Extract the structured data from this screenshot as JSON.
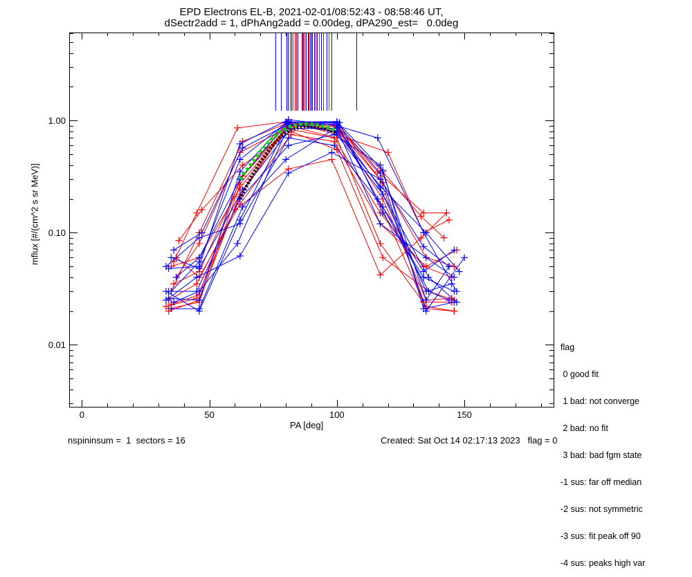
{
  "title": {
    "line1": "EPD Electrons EL-B, 2021-02-01/08:52:43 - 08:58:46 UT,",
    "line2": "dSectr2add = 1, dPhAng2add = 0.00deg, dPA290_est=   0.0deg"
  },
  "footer": {
    "left": "nspininsum =  1  sectors = 16",
    "right": "Created: Sat Oct 14 02:17:13 2023   flag = 0"
  },
  "legend": {
    "title": "flag",
    "items": [
      " 0 good fit",
      " 1 bad: not converge",
      " 2 bad: no fit",
      " 3 bad: bad fgm state",
      "-1 sus: far off median",
      "-2 sus: not symmetric",
      "-3 sus: fit peak off 90",
      "-4 sus: peaks high var"
    ]
  },
  "chart_data": {
    "type": "line",
    "xlabel": "PA [deg]",
    "ylabel": "mflux [#/(cm^2 s sr MeV)]",
    "xlim": [
      -5,
      185
    ],
    "ylim": [
      0.0028,
      6.1
    ],
    "yscale": "log",
    "xticks": [
      0,
      50,
      100,
      150
    ],
    "xtick_labels": [
      "0",
      "50",
      "100",
      "150"
    ],
    "yticks": [
      0.01,
      0.1,
      1.0
    ],
    "ytick_labels": [
      "0.01",
      "0.10",
      "1.00"
    ],
    "colors": {
      "red": "#ff0000",
      "blue": "#0000ff",
      "fit": "#00dd00",
      "median": "#000000"
    },
    "peak_markers": [
      {
        "pa": 75.8,
        "color": "blue"
      },
      {
        "pa": 78.0,
        "color": "blue"
      },
      {
        "pa": 80.2,
        "color": "blue"
      },
      {
        "pa": 80.7,
        "color": "blue"
      },
      {
        "pa": 81.5,
        "color": "red"
      },
      {
        "pa": 82.1,
        "color": "blue"
      },
      {
        "pa": 82.6,
        "color": "red"
      },
      {
        "pa": 83.4,
        "color": "red"
      },
      {
        "pa": 83.9,
        "color": "red"
      },
      {
        "pa": 84.5,
        "color": "blue"
      },
      {
        "pa": 86.1,
        "color": "red"
      },
      {
        "pa": 86.4,
        "color": "red"
      },
      {
        "pa": 86.7,
        "color": "blue"
      },
      {
        "pa": 87.2,
        "color": "red"
      },
      {
        "pa": 87.8,
        "color": "blue"
      },
      {
        "pa": 88.6,
        "color": "blue"
      },
      {
        "pa": 88.9,
        "color": "red"
      },
      {
        "pa": 89.4,
        "color": "blue"
      },
      {
        "pa": 89.9,
        "color": "blue"
      },
      {
        "pa": 90.2,
        "color": "red"
      },
      {
        "pa": 91.0,
        "color": "blue"
      },
      {
        "pa": 91.6,
        "color": "red"
      },
      {
        "pa": 92.1,
        "color": "blue"
      },
      {
        "pa": 92.9,
        "color": "red"
      },
      {
        "pa": 93.8,
        "color": "blue"
      },
      {
        "pa": 94.6,
        "color": "red"
      },
      {
        "pa": 96.0,
        "color": "blue"
      },
      {
        "pa": 96.8,
        "color": "red"
      },
      {
        "pa": 97.8,
        "color": "blue"
      },
      {
        "pa": 107.6,
        "color": "blue"
      }
    ],
    "series": [
      {
        "color": "red",
        "points": [
          [
            34,
            0.02
          ],
          [
            46,
            0.025
          ],
          [
            62,
            0.22
          ],
          [
            81,
            0.95
          ],
          [
            100,
            0.92
          ],
          [
            117,
            0.3
          ],
          [
            135,
            0.021
          ],
          [
            146,
            0.02
          ]
        ]
      },
      {
        "color": "red",
        "points": [
          [
            35,
            0.023
          ],
          [
            46,
            0.028
          ],
          [
            62,
            0.3
          ],
          [
            81,
            0.9
          ],
          [
            100,
            0.85
          ],
          [
            118,
            0.2
          ],
          [
            135,
            0.025
          ],
          [
            145,
            0.026
          ]
        ]
      },
      {
        "color": "red",
        "points": [
          [
            36,
            0.055
          ],
          [
            45,
            0.15
          ],
          [
            61,
            0.86
          ],
          [
            81,
            0.98
          ],
          [
            100,
            0.75
          ],
          [
            120,
            0.52
          ],
          [
            134,
            0.1
          ],
          [
            144,
            0.13
          ]
        ]
      },
      {
        "color": "red",
        "points": [
          [
            37,
            0.04
          ],
          [
            46,
            0.08
          ],
          [
            62,
            0.52
          ],
          [
            80,
            0.85
          ],
          [
            99,
            0.7
          ],
          [
            117,
            0.15
          ],
          [
            134,
            0.05
          ],
          [
            145,
            0.04
          ]
        ]
      },
      {
        "color": "red",
        "points": [
          [
            38,
            0.085
          ],
          [
            47,
            0.16
          ],
          [
            63,
            0.4
          ],
          [
            82,
            0.8
          ],
          [
            100,
            0.55
          ],
          [
            118,
            0.06
          ],
          [
            136,
            0.03
          ],
          [
            146,
            0.025
          ]
        ]
      },
      {
        "color": "red",
        "points": [
          [
            34,
            0.025
          ],
          [
            45,
            0.035
          ],
          [
            60,
            0.16
          ],
          [
            81,
            0.37
          ],
          [
            98,
            0.45
          ],
          [
            117,
            0.042
          ],
          [
            133,
            0.09
          ],
          [
            143,
            0.15
          ]
        ]
      },
      {
        "color": "red",
        "points": [
          [
            35,
            0.05
          ],
          [
            46,
            0.06
          ],
          [
            62,
            0.25
          ],
          [
            81,
            0.88
          ],
          [
            100,
            0.9
          ],
          [
            116,
            0.35
          ],
          [
            134,
            0.15
          ],
          [
            143,
            0.15
          ]
        ]
      },
      {
        "color": "red",
        "points": [
          [
            36,
            0.035
          ],
          [
            46,
            0.045
          ],
          [
            63,
            0.32
          ],
          [
            80,
            0.95
          ],
          [
            101,
            0.8
          ],
          [
            118,
            0.28
          ],
          [
            135,
            0.06
          ],
          [
            146,
            0.05
          ]
        ]
      },
      {
        "color": "red",
        "points": [
          [
            33,
            0.022
          ],
          [
            45,
            0.026
          ],
          [
            62,
            0.21
          ],
          [
            81,
            0.92
          ],
          [
            100,
            0.96
          ],
          [
            117,
            0.18
          ],
          [
            134,
            0.024
          ],
          [
            145,
            0.024
          ]
        ]
      },
      {
        "color": "red",
        "points": [
          [
            37,
            0.06
          ],
          [
            46,
            0.04
          ],
          [
            62,
            0.18
          ],
          [
            82,
            0.75
          ],
          [
            99,
            0.65
          ],
          [
            117,
            0.12
          ],
          [
            135,
            0.05
          ],
          [
            147,
            0.07
          ]
        ]
      },
      {
        "color": "red",
        "points": [
          [
            35,
            0.03
          ],
          [
            46,
            0.1
          ],
          [
            63,
            0.65
          ],
          [
            81,
            0.96
          ],
          [
            100,
            0.88
          ],
          [
            118,
            0.35
          ],
          [
            133,
            0.14
          ],
          [
            142,
            0.09
          ]
        ]
      },
      {
        "color": "red",
        "points": [
          [
            34,
            0.021
          ],
          [
            46,
            0.024
          ],
          [
            62,
            0.27
          ],
          [
            81,
            0.9
          ],
          [
            100,
            0.7
          ],
          [
            117,
            0.08
          ],
          [
            135,
            0.022
          ],
          [
            146,
            0.02
          ]
        ]
      },
      {
        "color": "blue",
        "points": [
          [
            33,
            0.03
          ],
          [
            46,
            0.02
          ],
          [
            62,
            0.13
          ],
          [
            81,
            0.95
          ],
          [
            100,
            0.95
          ],
          [
            117,
            0.34
          ],
          [
            135,
            0.02
          ],
          [
            150,
            0.06
          ]
        ]
      },
      {
        "color": "blue",
        "points": [
          [
            34,
            0.048
          ],
          [
            46,
            0.05
          ],
          [
            62,
            0.62
          ],
          [
            81,
            1.02
          ],
          [
            100,
            0.9
          ],
          [
            116,
            0.7
          ],
          [
            134,
            0.1
          ],
          [
            147,
            0.03
          ]
        ]
      },
      {
        "color": "blue",
        "points": [
          [
            36,
            0.07
          ],
          [
            47,
            0.1
          ],
          [
            63,
            0.57
          ],
          [
            81,
            0.93
          ],
          [
            99,
            0.8
          ],
          [
            118,
            0.22
          ],
          [
            136,
            0.04
          ],
          [
            147,
            0.024
          ]
        ]
      },
      {
        "color": "blue",
        "points": [
          [
            35,
            0.021
          ],
          [
            46,
            0.021
          ],
          [
            63,
            0.17
          ],
          [
            80,
            0.45
          ],
          [
            100,
            0.87
          ],
          [
            117,
            0.25
          ],
          [
            135,
            0.03
          ],
          [
            145,
            0.035
          ]
        ]
      },
      {
        "color": "blue",
        "points": [
          [
            33,
            0.025
          ],
          [
            45,
            0.04
          ],
          [
            62,
            0.062
          ],
          [
            81,
            0.34
          ],
          [
            98,
            0.52
          ],
          [
            117,
            0.3
          ],
          [
            134,
            0.075
          ],
          [
            144,
            0.05
          ]
        ]
      },
      {
        "color": "blue",
        "points": [
          [
            37,
            0.04
          ],
          [
            46,
            0.06
          ],
          [
            62,
            0.3
          ],
          [
            81,
            0.97
          ],
          [
            101,
            0.96
          ],
          [
            118,
            0.15
          ],
          [
            134,
            0.04
          ],
          [
            146,
            0.03
          ]
        ]
      },
      {
        "color": "blue",
        "points": [
          [
            34,
            0.03
          ],
          [
            45,
            0.03
          ],
          [
            62,
            0.2
          ],
          [
            81,
            0.6
          ],
          [
            99,
            0.75
          ],
          [
            117,
            0.4
          ],
          [
            135,
            0.025
          ],
          [
            144,
            0.05
          ]
        ]
      },
      {
        "color": "blue",
        "points": [
          [
            36,
            0.024
          ],
          [
            46,
            0.03
          ],
          [
            61,
            0.08
          ],
          [
            81,
            0.9
          ],
          [
            100,
            0.93
          ],
          [
            116,
            0.2
          ],
          [
            134,
            0.045
          ],
          [
            146,
            0.07
          ]
        ]
      },
      {
        "color": "blue",
        "points": [
          [
            35,
            0.06
          ],
          [
            46,
            0.048
          ],
          [
            63,
            0.24
          ],
          [
            82,
            0.85
          ],
          [
            100,
            0.85
          ],
          [
            117,
            0.12
          ],
          [
            135,
            0.06
          ],
          [
            146,
            0.04
          ]
        ]
      },
      {
        "color": "blue",
        "points": [
          [
            34,
            0.026
          ],
          [
            46,
            0.025
          ],
          [
            62,
            0.35
          ],
          [
            80,
            0.97
          ],
          [
            100,
            0.98
          ],
          [
            118,
            0.36
          ],
          [
            134,
            0.021
          ],
          [
            146,
            0.024
          ]
        ]
      },
      {
        "color": "blue",
        "points": [
          [
            33,
            0.05
          ],
          [
            46,
            0.09
          ],
          [
            62,
            0.12
          ],
          [
            81,
            0.7
          ],
          [
            99,
            0.6
          ],
          [
            118,
            0.17
          ],
          [
            136,
            0.03
          ],
          [
            144,
            0.025
          ]
        ]
      },
      {
        "color": "blue",
        "points": [
          [
            35,
            0.03
          ],
          [
            46,
            0.055
          ],
          [
            62,
            0.45
          ],
          [
            81,
            0.99
          ],
          [
            100,
            0.78
          ],
          [
            117,
            0.26
          ],
          [
            135,
            0.1
          ],
          [
            148,
            0.045
          ]
        ]
      }
    ],
    "fit_curve": {
      "color": "fit",
      "points": [
        [
          62,
          0.3
        ],
        [
          66,
          0.4
        ],
        [
          70,
          0.53
        ],
        [
          74,
          0.67
        ],
        [
          78,
          0.8
        ],
        [
          82,
          0.89
        ],
        [
          86,
          0.93
        ],
        [
          90,
          0.93
        ],
        [
          94,
          0.9
        ],
        [
          98,
          0.84
        ],
        [
          100,
          0.8
        ]
      ]
    },
    "median_curve": {
      "color": "median",
      "points": [
        [
          62,
          0.2
        ],
        [
          66,
          0.3
        ],
        [
          70,
          0.43
        ],
        [
          74,
          0.57
        ],
        [
          78,
          0.72
        ],
        [
          82,
          0.83
        ],
        [
          86,
          0.88
        ],
        [
          90,
          0.88
        ],
        [
          94,
          0.86
        ],
        [
          98,
          0.81
        ],
        [
          100,
          0.78
        ]
      ]
    }
  }
}
